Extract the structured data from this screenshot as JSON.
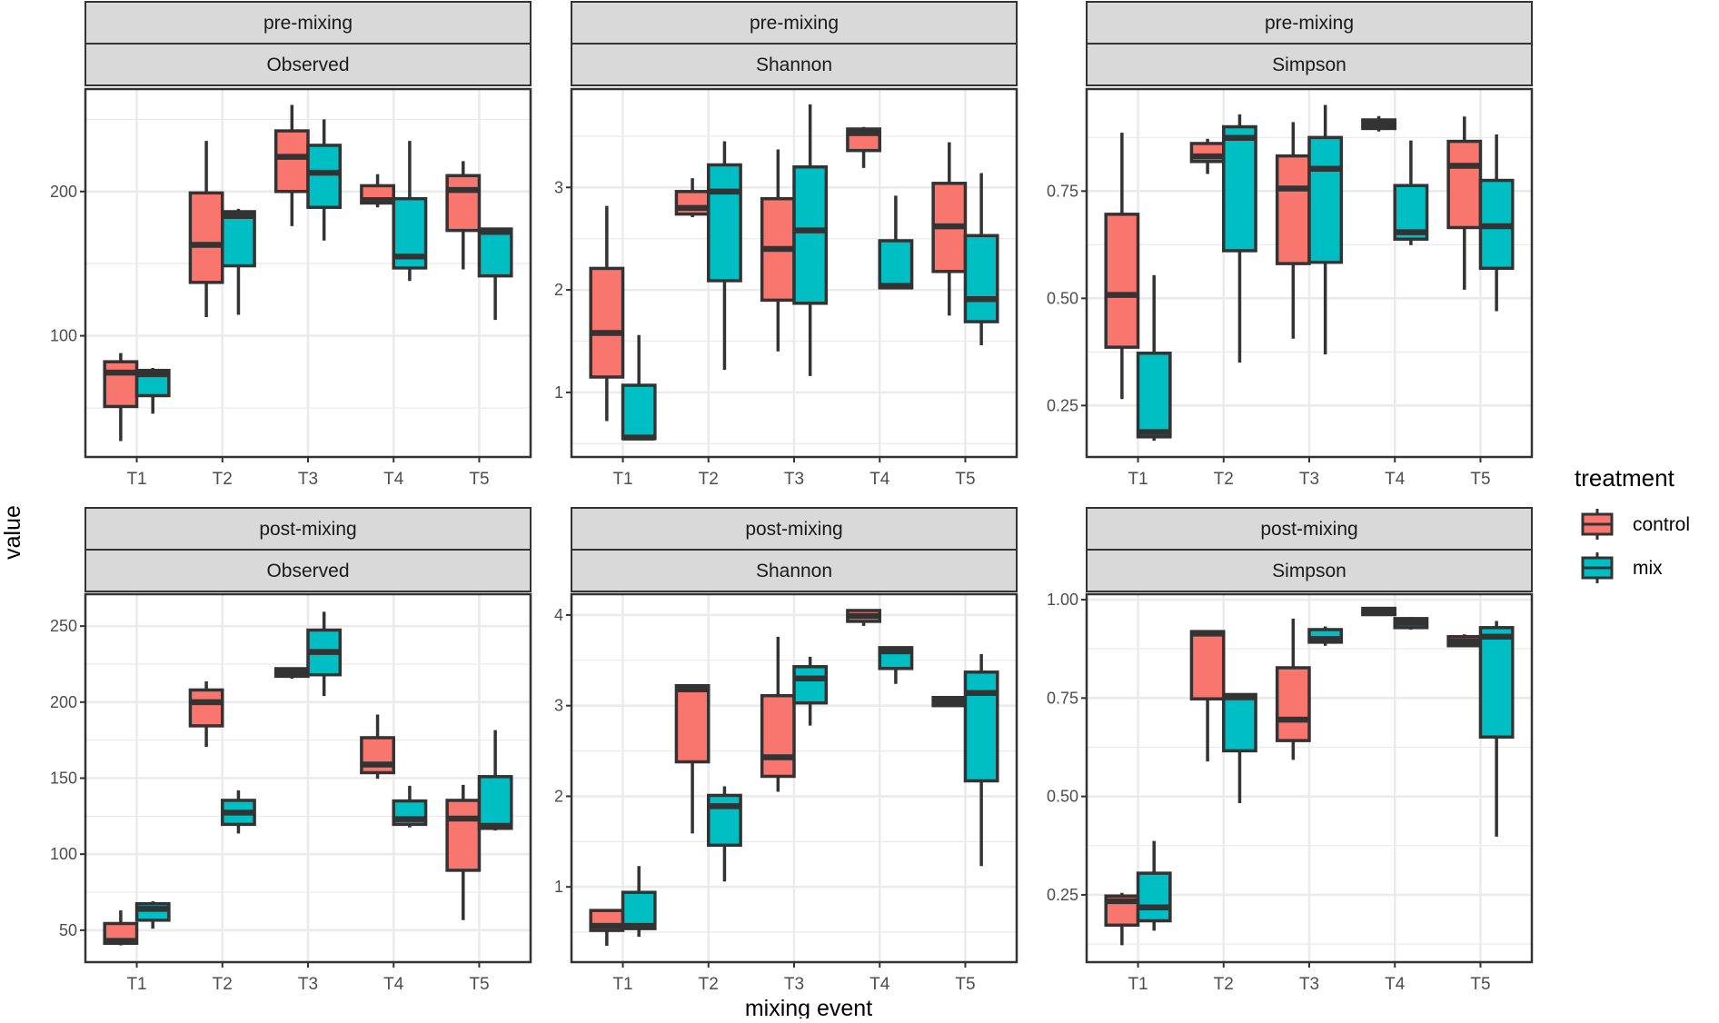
{
  "colors": {
    "control": "#F8766D",
    "mix": "#00BFC4",
    "strip": "#D9D9D9",
    "border": "#333333",
    "grid": "#EBEBEB"
  },
  "axis": {
    "xlabel": "mixing event",
    "ylabel": "value"
  },
  "legend": {
    "title": "treatment",
    "placement": "right",
    "items": [
      "control",
      "mix"
    ]
  },
  "chart_data": [
    {
      "type": "box",
      "strip_top": "pre-mixing",
      "strip_bottom": "Observed",
      "ylim": [
        16,
        271
      ],
      "yticks": [
        100,
        200
      ],
      "ytick_labels": [
        "100",
        "200"
      ],
      "yminor": [
        50,
        150,
        250
      ],
      "categories": [
        "T1",
        "T2",
        "T3",
        "T4",
        "T5"
      ],
      "series": [
        {
          "name": "control",
          "boxes": [
            [
              27,
              51,
              74.5,
              82,
              88
            ],
            [
              113,
              137,
              163,
              199,
              235
            ],
            [
              176,
              200,
              224,
              242,
              260
            ],
            [
              189,
              192,
              194,
              204,
              212
            ],
            [
              146,
              173,
              201,
              211,
              221
            ]
          ]
        },
        {
          "name": "mix",
          "boxes": [
            [
              46,
              58.5,
              73.4,
              76,
              77.7
            ],
            [
              114.5,
              148.5,
              183,
              186,
              188
            ],
            [
              166,
              189,
              213,
              232,
              250
            ],
            [
              138,
              147,
              155,
              195,
              235
            ],
            [
              111,
              141.5,
              172,
              174,
              175
            ]
          ]
        }
      ]
    },
    {
      "type": "box",
      "strip_top": "pre-mixing",
      "strip_bottom": "Shannon",
      "ylim": [
        0.37,
        3.96
      ],
      "yticks": [
        1,
        2,
        3
      ],
      "ytick_labels": [
        "1",
        "2",
        "3"
      ],
      "yminor": [
        0.5,
        1.5,
        2.5,
        3.5
      ],
      "categories": [
        "T1",
        "T2",
        "T3",
        "T4",
        "T5"
      ],
      "series": [
        {
          "name": "control",
          "boxes": [
            [
              0.72,
              1.15,
              1.58,
              2.21,
              2.82
            ],
            [
              2.71,
              2.74,
              2.8,
              2.96,
              3.09
            ],
            [
              1.4,
              1.9,
              2.4,
              2.89,
              3.37
            ],
            [
              3.19,
              3.36,
              3.53,
              3.57,
              3.59
            ],
            [
              1.75,
              2.18,
              2.62,
              3.04,
              3.44
            ]
          ]
        },
        {
          "name": "mix",
          "boxes": [
            [
              0.54,
              0.55,
              0.56,
              1.07,
              1.56
            ],
            [
              1.22,
              2.09,
              2.96,
              3.22,
              3.45
            ],
            [
              1.16,
              1.87,
              2.58,
              3.2,
              3.81
            ],
            [
              2.02,
              2.02,
              2.04,
              2.48,
              2.92
            ],
            [
              1.46,
              1.69,
              1.91,
              2.53,
              3.14
            ]
          ]
        }
      ]
    },
    {
      "type": "box",
      "strip_top": "pre-mixing",
      "strip_bottom": "Simpson",
      "ylim": [
        0.13,
        0.988
      ],
      "yticks": [
        0.25,
        0.5,
        0.75
      ],
      "ytick_labels": [
        "0.25",
        "0.50",
        "0.75"
      ],
      "yminor": [
        0.375,
        0.625,
        0.875
      ],
      "categories": [
        "T1",
        "T2",
        "T3",
        "T4",
        "T5"
      ],
      "series": [
        {
          "name": "control",
          "boxes": [
            [
              0.265,
              0.386,
              0.508,
              0.696,
              0.886
            ],
            [
              0.79,
              0.819,
              0.831,
              0.861,
              0.872
            ],
            [
              0.406,
              0.581,
              0.756,
              0.832,
              0.911
            ],
            [
              0.889,
              0.896,
              0.906,
              0.916,
              0.925
            ],
            [
              0.52,
              0.665,
              0.809,
              0.866,
              0.924
            ]
          ]
        },
        {
          "name": "mix",
          "boxes": [
            [
              0.168,
              0.177,
              0.188,
              0.372,
              0.554
            ],
            [
              0.35,
              0.611,
              0.874,
              0.9,
              0.929
            ],
            [
              0.369,
              0.584,
              0.802,
              0.875,
              0.951
            ],
            [
              0.624,
              0.638,
              0.654,
              0.763,
              0.868
            ],
            [
              0.47,
              0.57,
              0.668,
              0.775,
              0.882
            ]
          ]
        }
      ]
    },
    {
      "type": "box",
      "strip_top": "post-mixing",
      "strip_bottom": "Observed",
      "ylim": [
        29,
        271
      ],
      "yticks": [
        50,
        100,
        150,
        200,
        250
      ],
      "ytick_labels": [
        "50",
        "100",
        "150",
        "200",
        "250"
      ],
      "yminor": [
        75,
        125,
        175,
        225
      ],
      "categories": [
        "T1",
        "T2",
        "T3",
        "T4",
        "T5"
      ],
      "series": [
        {
          "name": "control",
          "boxes": [
            [
              40,
              41.4,
              43,
              54.4,
              63
            ],
            [
              170.6,
              184.4,
              200,
              208,
              213.6
            ],
            [
              215.4,
              217,
              219.4,
              222,
              222.4
            ],
            [
              149.6,
              153.6,
              159,
              176.6,
              191.8
            ],
            [
              56.6,
              89.4,
              123.4,
              135.4,
              145.6
            ]
          ]
        },
        {
          "name": "mix",
          "boxes": [
            [
              51,
              56.6,
              64,
              67.4,
              69
            ],
            [
              113.6,
              119.6,
              127.4,
              135.4,
              142
            ],
            [
              204,
              218,
              233,
              247.4,
              259.4
            ],
            [
              117.6,
              119.6,
              123,
              135,
              145
            ],
            [
              115.6,
              117,
              118.6,
              151,
              181.6
            ]
          ]
        }
      ]
    },
    {
      "type": "box",
      "strip_top": "post-mixing",
      "strip_bottom": "Shannon",
      "ylim": [
        0.17,
        4.23
      ],
      "yticks": [
        1,
        2,
        3,
        4
      ],
      "ytick_labels": [
        "1",
        "2",
        "3",
        "4"
      ],
      "yminor": [
        0.5,
        1.5,
        2.5,
        3.5
      ],
      "categories": [
        "T1",
        "T2",
        "T3",
        "T4",
        "T5"
      ],
      "series": [
        {
          "name": "control",
          "boxes": [
            [
              0.35,
              0.52,
              0.57,
              0.74,
              0.75
            ],
            [
              1.59,
              2.38,
              3.18,
              3.22,
              3.22
            ],
            [
              2.05,
              2.22,
              2.43,
              3.11,
              3.76
            ],
            [
              3.88,
              3.93,
              3.99,
              4.05,
              4.06
            ],
            [
              2.99,
              3.0,
              3.05,
              3.09,
              3.1
            ]
          ]
        },
        {
          "name": "mix",
          "boxes": [
            [
              0.45,
              0.54,
              0.57,
              0.94,
              1.23
            ],
            [
              1.06,
              1.46,
              1.89,
              2.01,
              2.11
            ],
            [
              2.78,
              3.03,
              3.3,
              3.43,
              3.54
            ],
            [
              3.24,
              3.41,
              3.6,
              3.64,
              3.64
            ],
            [
              1.23,
              2.17,
              3.14,
              3.37,
              3.57
            ]
          ]
        }
      ]
    },
    {
      "type": "box",
      "strip_top": "post-mixing",
      "strip_bottom": "Simpson",
      "ylim": [
        0.079,
        1.014
      ],
      "yticks": [
        0.25,
        0.5,
        0.75,
        1.0
      ],
      "ytick_labels": [
        "0.25",
        "0.50",
        "0.75",
        "1.00"
      ],
      "yminor": [
        0.125,
        0.375,
        0.625,
        0.875
      ],
      "categories": [
        "T1",
        "T2",
        "T3",
        "T4",
        "T5"
      ],
      "series": [
        {
          "name": "control",
          "boxes": [
            [
              0.122,
              0.173,
              0.234,
              0.247,
              0.255
            ],
            [
              0.589,
              0.748,
              0.914,
              0.919,
              0.922
            ],
            [
              0.593,
              0.642,
              0.695,
              0.827,
              0.952
            ],
            [
              0.962,
              0.962,
              0.968,
              0.978,
              0.98
            ],
            [
              0.881,
              0.883,
              0.894,
              0.906,
              0.912
            ]
          ]
        },
        {
          "name": "mix",
          "boxes": [
            [
              0.159,
              0.184,
              0.218,
              0.305,
              0.387
            ],
            [
              0.483,
              0.616,
              0.752,
              0.759,
              0.762
            ],
            [
              0.883,
              0.892,
              0.9,
              0.924,
              0.932
            ],
            [
              0.924,
              0.929,
              0.941,
              0.952,
              0.956
            ],
            [
              0.398,
              0.651,
              0.906,
              0.929,
              0.946
            ]
          ]
        }
      ]
    }
  ]
}
